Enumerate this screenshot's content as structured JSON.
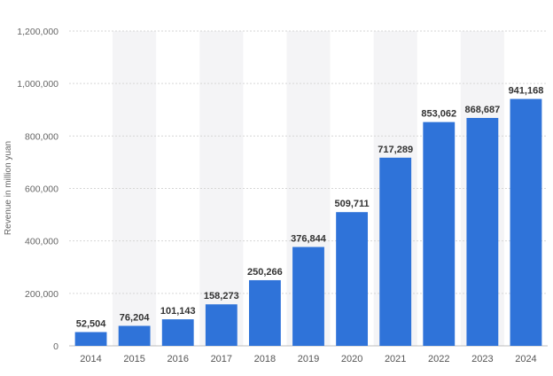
{
  "chart_data": {
    "type": "bar",
    "title": "",
    "xlabel": "",
    "ylabel": "Revenue in million yuan",
    "categories": [
      "2014",
      "2015",
      "2016",
      "2017",
      "2018",
      "2019",
      "2020",
      "2021",
      "2022",
      "2023",
      "2024"
    ],
    "values": [
      52504,
      76204,
      101143,
      158273,
      250266,
      376844,
      509711,
      717289,
      853062,
      868687,
      941168
    ],
    "value_labels": [
      "52,504",
      "76,204",
      "101,143",
      "158,273",
      "250,266",
      "376,844",
      "509,711",
      "717,289",
      "853,062",
      "868,687",
      "941,168"
    ],
    "ylim": [
      0,
      1200000
    ],
    "yticks": [
      0,
      200000,
      400000,
      600000,
      800000,
      1000000,
      1200000
    ],
    "ytick_labels": [
      "0",
      "200,000",
      "400,000",
      "600,000",
      "800,000",
      "1,000,000",
      "1,200,000"
    ],
    "grid": true,
    "legend": "none",
    "colors": {
      "bar": "#2f73d9",
      "band": "#f4f4f6",
      "grid": "#d6d6d6",
      "axis": "#bdbdbd"
    }
  }
}
